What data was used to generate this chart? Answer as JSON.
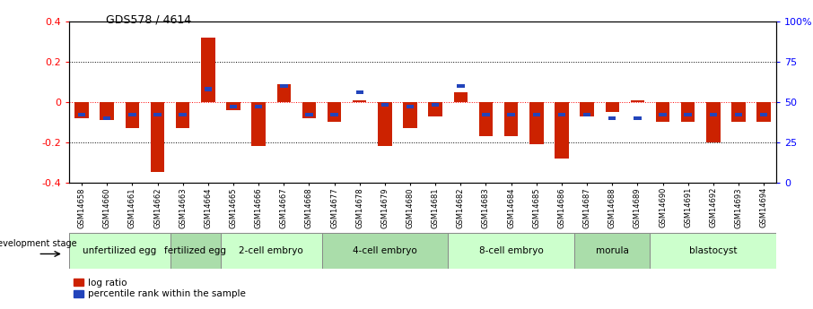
{
  "title": "GDS578 / 4614",
  "samples": [
    "GSM14658",
    "GSM14660",
    "GSM14661",
    "GSM14662",
    "GSM14663",
    "GSM14664",
    "GSM14665",
    "GSM14666",
    "GSM14667",
    "GSM14668",
    "GSM14677",
    "GSM14678",
    "GSM14679",
    "GSM14680",
    "GSM14681",
    "GSM14682",
    "GSM14683",
    "GSM14684",
    "GSM14685",
    "GSM14686",
    "GSM14687",
    "GSM14688",
    "GSM14689",
    "GSM14690",
    "GSM14691",
    "GSM14692",
    "GSM14693",
    "GSM14694"
  ],
  "log_ratio": [
    -0.08,
    -0.09,
    -0.13,
    -0.35,
    -0.13,
    0.32,
    -0.04,
    -0.22,
    0.09,
    -0.08,
    -0.1,
    0.01,
    -0.22,
    -0.13,
    -0.07,
    0.05,
    -0.17,
    -0.17,
    -0.21,
    -0.28,
    -0.07,
    -0.05,
    0.01,
    -0.1,
    -0.1,
    -0.2,
    -0.1,
    -0.1
  ],
  "percentile_rank_pct": [
    42,
    40,
    42,
    42,
    42,
    58,
    47,
    47,
    60,
    42,
    42,
    56,
    48,
    47,
    48,
    60,
    42,
    42,
    42,
    42,
    42,
    40,
    40,
    42,
    42,
    42,
    42,
    42
  ],
  "stages": [
    {
      "label": "unfertilized egg",
      "start": 0,
      "end": 4,
      "color": "#ccffcc"
    },
    {
      "label": "fertilized egg",
      "start": 4,
      "end": 6,
      "color": "#aaddaa"
    },
    {
      "label": "2-cell embryo",
      "start": 6,
      "end": 10,
      "color": "#ccffcc"
    },
    {
      "label": "4-cell embryo",
      "start": 10,
      "end": 15,
      "color": "#aaddaa"
    },
    {
      "label": "8-cell embryo",
      "start": 15,
      "end": 20,
      "color": "#ccffcc"
    },
    {
      "label": "morula",
      "start": 20,
      "end": 23,
      "color": "#aaddaa"
    },
    {
      "label": "blastocyst",
      "start": 23,
      "end": 28,
      "color": "#ccffcc"
    }
  ],
  "ylim": [
    -0.4,
    0.4
  ],
  "bar_color": "#cc2200",
  "pct_color": "#2244bb",
  "bar_width": 0.55,
  "pct_bar_width": 0.3
}
